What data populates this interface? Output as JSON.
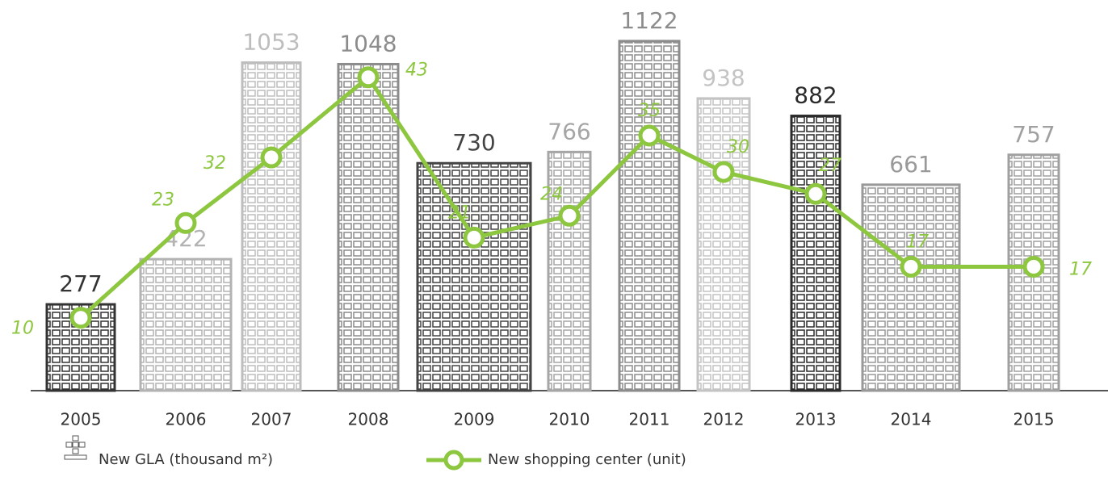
{
  "chart_data": {
    "type": "bar",
    "categories": [
      "2005",
      "2006",
      "2007",
      "2008",
      "2009",
      "2010",
      "2011",
      "2012",
      "2013",
      "2014",
      "2015"
    ],
    "series": [
      {
        "name": "New GLA (thousand m²)",
        "type": "bar",
        "colors": [
          "#333333",
          "#b3b3b3",
          "#bdbdbd",
          "#8c8c8c",
          "#444444",
          "#a6a6a6",
          "#8c8c8c",
          "#c4c4c4",
          "#2b2b2b",
          "#999999",
          "#a0a0a0"
        ],
        "values": [
          277,
          422,
          1053,
          1048,
          730,
          766,
          1122,
          938,
          882,
          661,
          757
        ]
      },
      {
        "name": "New shopping center (unit)",
        "type": "line",
        "axis": "y2",
        "color": "#8dc63f",
        "values": [
          10,
          23,
          32,
          43,
          21,
          24,
          35,
          30,
          27,
          17,
          17
        ]
      }
    ]
  }
}
